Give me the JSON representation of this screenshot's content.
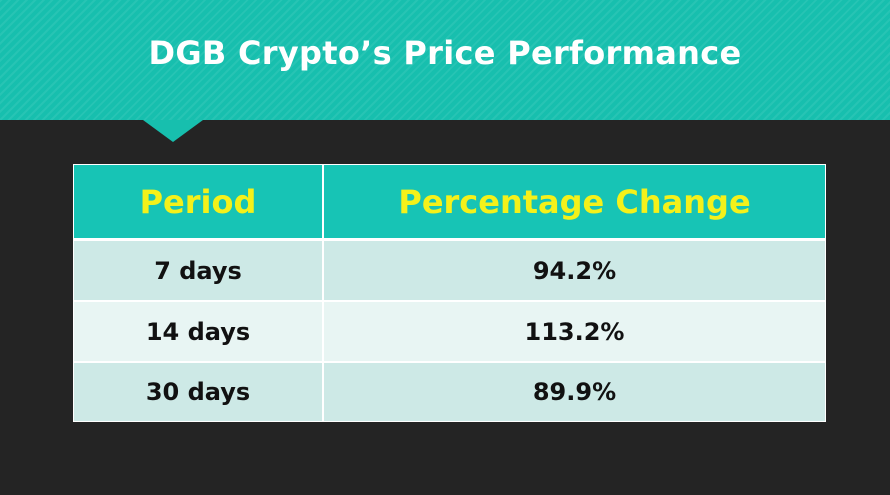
{
  "title": "DGB Crypto’s Price Performance",
  "chart_data": {
    "type": "table",
    "title": "DGB Crypto’s Price Performance",
    "columns": [
      "Period",
      "Percentage Change"
    ],
    "rows": [
      [
        "7 days",
        "94.2%"
      ],
      [
        "14 days",
        "113.2%"
      ],
      [
        "30 days",
        "89.9%"
      ]
    ]
  },
  "colors": {
    "banner": "#17bfae",
    "background": "#242424",
    "header_fill": "#17c4b5",
    "header_text": "#f4f11a",
    "row_dark": "#cde9e6",
    "row_light": "#e8f5f3"
  }
}
